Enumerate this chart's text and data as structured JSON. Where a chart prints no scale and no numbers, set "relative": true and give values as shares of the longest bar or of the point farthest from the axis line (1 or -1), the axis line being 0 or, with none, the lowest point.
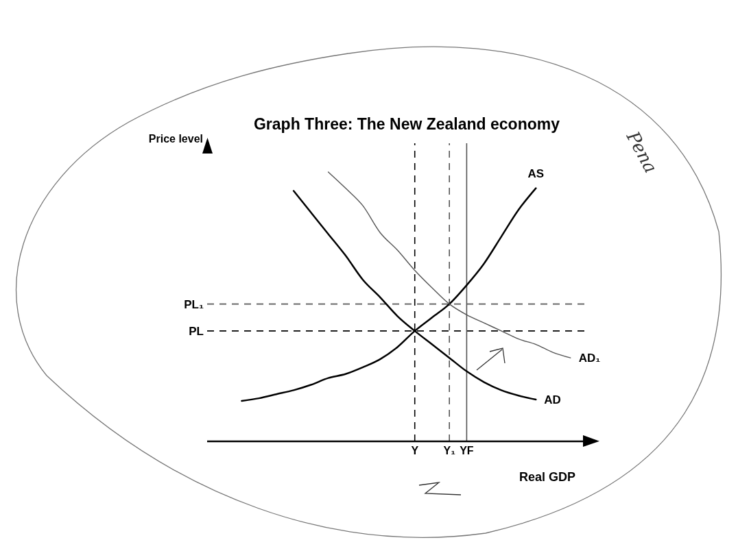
{
  "chart_data": {
    "type": "line",
    "title": "Graph Three: The New Zealand economy",
    "xlabel": "Real GDP",
    "ylabel": "Price level",
    "relative": true,
    "categories": [
      null,
      null,
      null,
      null,
      null,
      null,
      null,
      null,
      null,
      null,
      null,
      null,
      "Y",
      null,
      "Y₁",
      "YF",
      null,
      null,
      null,
      null,
      null,
      null
    ],
    "series": [
      {
        "name": "AS",
        "color": "#000000",
        "values": [
          null,
          null,
          0.15,
          0.16,
          0.175,
          0.19,
          0.21,
          0.235,
          0.25,
          0.275,
          0.305,
          0.35,
          0.41,
          0.46,
          0.51,
          0.58,
          0.66,
          0.76,
          0.86,
          0.94,
          null,
          null
        ]
      },
      {
        "name": "AD",
        "color": "#000000",
        "values": [
          null,
          null,
          null,
          null,
          null,
          0.93,
          0.85,
          0.77,
          0.69,
          0.6,
          0.535,
          0.465,
          0.41,
          0.36,
          0.31,
          0.26,
          0.22,
          0.19,
          0.17,
          0.155,
          null,
          null
        ]
      },
      {
        "name": "AD₁",
        "color": "#555555",
        "values": [
          null,
          null,
          null,
          null,
          null,
          null,
          null,
          1.0,
          0.94,
          0.875,
          0.775,
          0.71,
          0.635,
          0.57,
          0.51,
          0.47,
          0.44,
          0.41,
          0.38,
          0.36,
          0.33,
          0.31
        ]
      }
    ],
    "ref_lines": [
      {
        "axis": "y",
        "value": 0.41,
        "label": "PL",
        "color": "#000000",
        "line_style": "dashed"
      },
      {
        "axis": "y",
        "value": 0.51,
        "label": "PL₁",
        "color": "#555555",
        "line_style": "dashed"
      },
      {
        "axis": "x",
        "value": "Y",
        "color": "#000000",
        "line_style": "dashed"
      },
      {
        "axis": "x",
        "value": "Y₁",
        "color": "#555555",
        "line_style": "dashed"
      },
      {
        "axis": "x",
        "value": "YF",
        "color": "#555555",
        "line_style": "solid"
      }
    ],
    "annotations": [
      "Pena"
    ]
  }
}
